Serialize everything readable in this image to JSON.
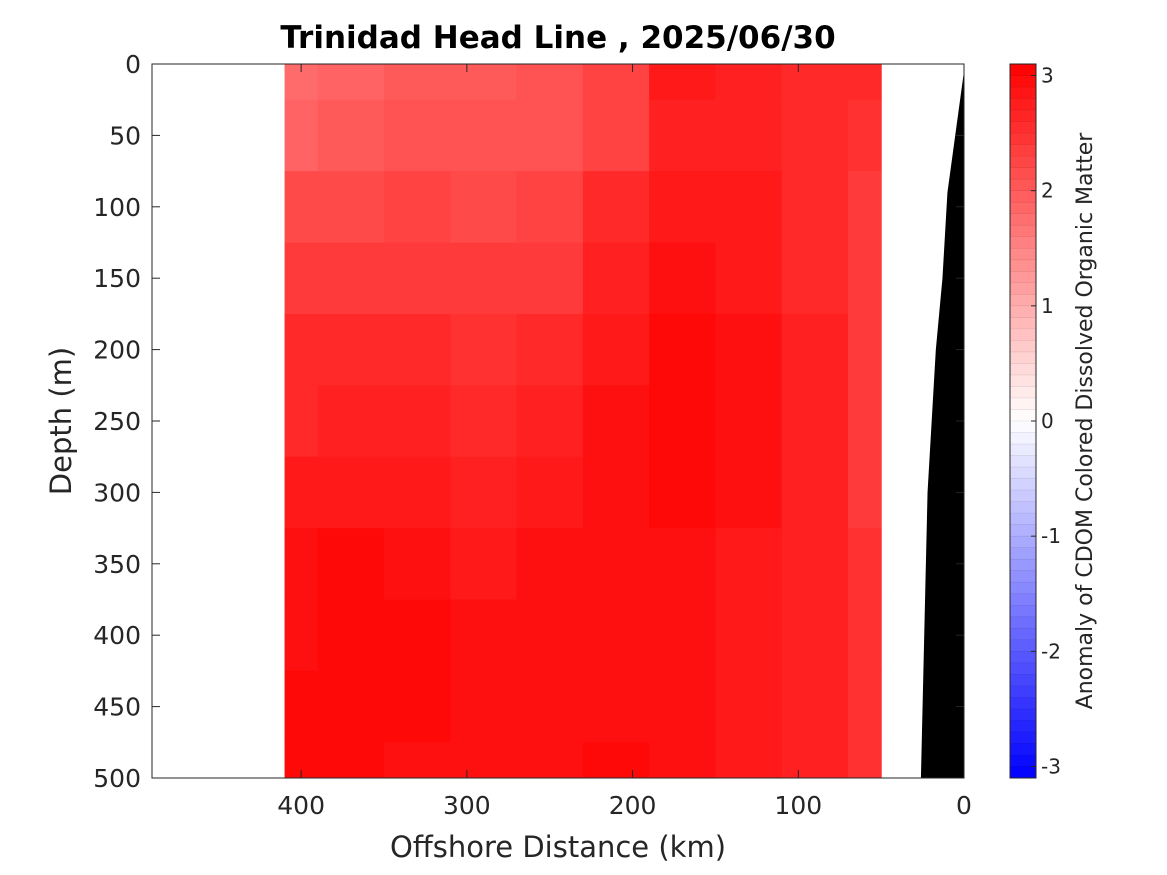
{
  "chart_data": {
    "type": "heatmap",
    "title": "Trinidad Head Line , 2025/06/30",
    "xlabel": "Offshore Distance (km)",
    "ylabel": "Depth (m)",
    "colorbar_label": "Anomaly of CDOM Colored Dissolved Organic Matter",
    "x_reversed": true,
    "y_reversed": true,
    "xlim": [
      0,
      490
    ],
    "ylim": [
      0,
      500
    ],
    "xticks": [
      400,
      300,
      200,
      100,
      0
    ],
    "yticks": [
      0,
      50,
      100,
      150,
      200,
      250,
      300,
      350,
      400,
      450,
      500
    ],
    "clim": [
      -3.1,
      3.1
    ],
    "cticks": [
      3,
      2,
      1,
      0,
      -1,
      -2,
      -3
    ],
    "colormap": {
      "positive": "#ff0000",
      "zero": "#ffffff",
      "negative": "#0000ff"
    },
    "data_extent_km": [
      50,
      410
    ],
    "bathymetry": {
      "color": "#000000",
      "bottom_profile": [
        {
          "x": 0,
          "depth": 5
        },
        {
          "x": 10,
          "depth": 90
        },
        {
          "x": 13,
          "depth": 150
        },
        {
          "x": 17,
          "depth": 200
        },
        {
          "x": 22,
          "depth": 300
        },
        {
          "x": 26,
          "depth": 500
        }
      ]
    },
    "anomaly_grid": {
      "x": [
        410,
        370,
        330,
        290,
        250,
        210,
        170,
        130,
        90,
        50
      ],
      "depth": [
        0,
        50,
        100,
        150,
        200,
        250,
        300,
        350,
        400,
        450,
        500
      ],
      "values": [
        [
          1.8,
          1.9,
          2.0,
          2.0,
          2.1,
          2.3,
          2.8,
          2.7,
          2.6,
          2.6
        ],
        [
          1.9,
          2.0,
          2.1,
          2.1,
          2.1,
          2.3,
          2.7,
          2.7,
          2.6,
          2.5
        ],
        [
          2.2,
          2.2,
          2.3,
          2.2,
          2.3,
          2.6,
          2.8,
          2.8,
          2.6,
          2.4
        ],
        [
          2.4,
          2.4,
          2.4,
          2.4,
          2.4,
          2.7,
          2.9,
          2.8,
          2.6,
          2.4
        ],
        [
          2.6,
          2.6,
          2.6,
          2.5,
          2.6,
          2.8,
          3.0,
          2.9,
          2.7,
          2.4
        ],
        [
          2.6,
          2.7,
          2.7,
          2.6,
          2.7,
          2.9,
          3.0,
          2.9,
          2.7,
          2.4
        ],
        [
          2.8,
          2.8,
          2.8,
          2.7,
          2.8,
          2.9,
          3.0,
          2.9,
          2.7,
          2.4
        ],
        [
          2.9,
          3.0,
          2.9,
          2.8,
          2.9,
          2.9,
          2.9,
          2.8,
          2.7,
          2.5
        ],
        [
          2.9,
          3.0,
          3.0,
          2.9,
          2.9,
          2.9,
          2.9,
          2.8,
          2.7,
          2.5
        ],
        [
          3.0,
          3.0,
          3.0,
          2.9,
          2.9,
          2.9,
          2.9,
          2.8,
          2.7,
          2.5
        ],
        [
          3.0,
          3.0,
          2.9,
          2.9,
          2.9,
          3.0,
          2.9,
          2.8,
          2.7,
          2.5
        ]
      ]
    }
  }
}
